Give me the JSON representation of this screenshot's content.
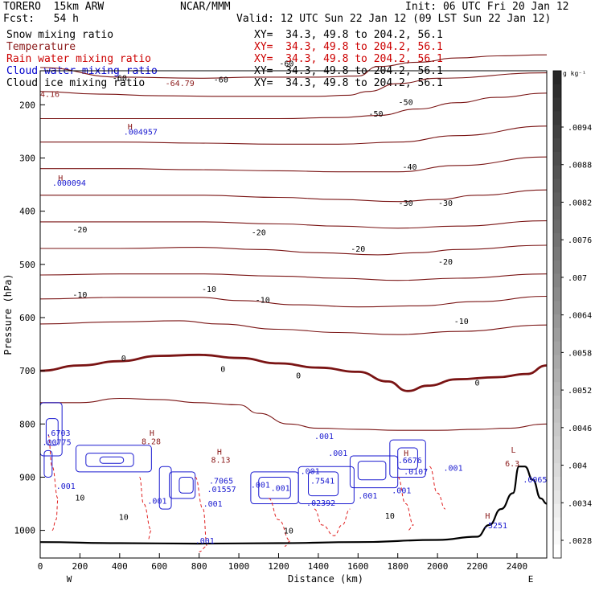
{
  "header": {
    "model": "TORERO  15km ARW",
    "center": "NCAR/MMM",
    "init": "Init: 06 UTC Fri 20 Jan 12",
    "fcst": "Fcst:   54 h",
    "valid": "Valid: 12 UTC Sun 22 Jan 12 (09 LST Sun 22 Jan 12)"
  },
  "fields": [
    {
      "label": "Snow mixing ratio",
      "xy": "XY=  34.3, 49.8 to 204.2, 56.1",
      "color": "#000000",
      "xy_color": "#000000"
    },
    {
      "label": "Temperature",
      "xy": "XY=  34.3, 49.8 to 204.2, 56.1",
      "color": "#8b1a1a",
      "xy_color": "#cc0000"
    },
    {
      "label": "Rain water mixing ratio",
      "xy": "XY=  34.3, 49.8 to 204.2, 56.1",
      "color": "#cc0000",
      "xy_color": "#cc0000"
    },
    {
      "label": "Cloud water mixing ratio",
      "xy": "XY=  34.3, 49.8 to 204.2, 56.1",
      "color": "#0000cc",
      "xy_color": "#000000"
    },
    {
      "label": "Cloud ice mixing ratio",
      "xy": "XY=  34.3, 49.8 to 204.2, 56.1",
      "color": "#000000",
      "xy_color": "#000000"
    }
  ],
  "chart_data": {
    "type": "line",
    "title": "",
    "xlabel": "Distance (km)",
    "ylabel": "Pressure (hPa)",
    "xlim": [
      0,
      2550
    ],
    "ylim": [
      1050,
      140
    ],
    "x_ticks": [
      "0",
      "200",
      "400",
      "600",
      "800",
      "1000",
      "1200",
      "1400",
      "1600",
      "1800",
      "2000",
      "2200",
      "2400"
    ],
    "x_tick_values": [
      0,
      200,
      400,
      600,
      800,
      1000,
      1200,
      1400,
      1600,
      1800,
      2000,
      2200,
      2400
    ],
    "x_end_labels": [
      "W",
      "E"
    ],
    "y_ticks": [
      "200",
      "300",
      "400",
      "500",
      "600",
      "700",
      "800",
      "900",
      "1000"
    ],
    "y_tick_values": [
      200,
      300,
      400,
      500,
      600,
      700,
      800,
      900,
      1000
    ],
    "temperature_isotherms": [
      {
        "label": "-60",
        "x": [
          0,
          400,
          800,
          1100,
          1400,
          1600,
          1700,
          1900,
          2100,
          2300,
          2550
        ],
        "y": [
          130,
          148,
          150,
          148,
          148,
          146,
          128,
          120,
          112,
          108,
          106
        ]
      },
      {
        "label": "-60b",
        "x": [
          0,
          300,
          600,
          900,
          1200,
          1400,
          1550,
          1650,
          1800,
          2000,
          2550
        ],
        "y": [
          175,
          180,
          183,
          184,
          184,
          184,
          182,
          175,
          160,
          150,
          140
        ]
      },
      {
        "label": "-50",
        "x": [
          0,
          400,
          800,
          1200,
          1500,
          1700,
          1900,
          2100,
          2300,
          2550
        ],
        "y": [
          226,
          226,
          226,
          226,
          224,
          220,
          208,
          196,
          186,
          178
        ]
      },
      {
        "label": "-50b",
        "x": [
          0,
          400,
          800,
          1200,
          1500,
          1800,
          2100,
          2550
        ],
        "y": [
          270,
          270,
          272,
          274,
          274,
          270,
          258,
          240
        ]
      },
      {
        "label": "-40",
        "x": [
          0,
          400,
          800,
          1200,
          1500,
          1800,
          2100,
          2550
        ],
        "y": [
          320,
          320,
          322,
          324,
          326,
          326,
          314,
          298
        ]
      },
      {
        "label": "-30",
        "x": [
          0,
          400,
          800,
          1200,
          1500,
          1800,
          2000,
          2200,
          2550
        ],
        "y": [
          370,
          370,
          370,
          374,
          378,
          382,
          378,
          370,
          360
        ]
      },
      {
        "label": "-30b",
        "x": [
          0,
          400,
          800,
          1200,
          1500,
          1800,
          2100,
          2550
        ],
        "y": [
          420,
          420,
          420,
          424,
          428,
          432,
          428,
          418
        ]
      },
      {
        "label": "-20",
        "x": [
          0,
          400,
          800,
          1100,
          1400,
          1700,
          1900,
          2100,
          2550
        ],
        "y": [
          470,
          470,
          468,
          472,
          478,
          482,
          478,
          472,
          464
        ]
      },
      {
        "label": "-20b",
        "x": [
          0,
          400,
          800,
          1200,
          1500,
          1800,
          2100,
          2550
        ],
        "y": [
          520,
          518,
          518,
          522,
          526,
          530,
          526,
          518
        ]
      },
      {
        "label": "-10",
        "x": [
          0,
          400,
          800,
          1000,
          1300,
          1600,
          1900,
          2200,
          2550
        ],
        "y": [
          565,
          562,
          562,
          568,
          576,
          580,
          578,
          570,
          560
        ]
      },
      {
        "label": "-10b",
        "x": [
          0,
          400,
          700,
          900,
          1200,
          1500,
          1800,
          2100,
          2550
        ],
        "y": [
          612,
          608,
          606,
          612,
          622,
          628,
          632,
          626,
          614
        ]
      },
      {
        "label": "0",
        "x": [
          0,
          200,
          400,
          600,
          800,
          1000,
          1200,
          1400,
          1600,
          1750,
          1850,
          1950,
          2100,
          2300,
          2450,
          2550
        ],
        "y": [
          700,
          690,
          682,
          672,
          670,
          676,
          686,
          694,
          702,
          720,
          738,
          728,
          716,
          712,
          706,
          690
        ]
      },
      {
        "label": "10",
        "x": [
          0,
          200,
          400,
          600,
          800,
          1000,
          1100,
          1250,
          1400,
          1600,
          1800,
          2000,
          2200,
          2350,
          2550
        ],
        "y": [
          760,
          760,
          752,
          754,
          760,
          764,
          780,
          800,
          808,
          810,
          812,
          812,
          810,
          808,
          800
        ]
      }
    ],
    "terrain": {
      "x": [
        0,
        400,
        800,
        1200,
        1600,
        2000,
        2200,
        2260,
        2320,
        2380,
        2410,
        2440,
        2480,
        2520,
        2550
      ],
      "y": [
        1022,
        1024,
        1025,
        1024,
        1022,
        1018,
        1012,
        990,
        960,
        930,
        880,
        880,
        905,
        940,
        950
      ]
    },
    "annotations": [
      {
        "text": "-64.79",
        "x": 630,
        "y": 165
      },
      {
        "text": "4.16",
        "x": 0,
        "y": 185
      },
      {
        "text": "H",
        "x": 440,
        "y": 246
      },
      {
        "text": ".004957",
        "x": 420,
        "y": 256
      },
      {
        "text": "H",
        "x": 90,
        "y": 343
      },
      {
        "text": ".000094",
        "x": 60,
        "y": 352
      },
      {
        "text": "H",
        "x": 550,
        "y": 822
      },
      {
        "text": "8.28",
        "x": 510,
        "y": 838
      },
      {
        "text": "H",
        "x": 890,
        "y": 858
      },
      {
        "text": "8.13",
        "x": 860,
        "y": 873
      },
      {
        "text": ".6703",
        "x": 30,
        "y": 822
      },
      {
        "text": ".00775",
        "x": 10,
        "y": 840
      },
      {
        "text": ".001",
        "x": 1310,
        "y": 894
      },
      {
        "text": ".001",
        "x": 1450,
        "y": 860
      },
      {
        "text": ".001",
        "x": 1380,
        "y": 828
      },
      {
        "text": "H",
        "x": 1830,
        "y": 860
      },
      {
        "text": ".6676",
        "x": 1800,
        "y": 874
      },
      {
        "text": ".0107",
        "x": 1830,
        "y": 895
      },
      {
        "text": ".7541",
        "x": 1360,
        "y": 912
      },
      {
        "text": ".7065",
        "x": 850,
        "y": 912
      },
      {
        "text": ".01557",
        "x": 840,
        "y": 928
      },
      {
        "text": ".001",
        "x": 820,
        "y": 955
      },
      {
        "text": ".001",
        "x": 540,
        "y": 950
      },
      {
        "text": ".001",
        "x": 80,
        "y": 922
      },
      {
        "text": ".001",
        "x": 1060,
        "y": 920
      },
      {
        "text": ".001",
        "x": 1160,
        "y": 926
      },
      {
        "text": ".001",
        "x": 1600,
        "y": 940
      },
      {
        "text": ".001",
        "x": 1770,
        "y": 930
      },
      {
        "text": ".001",
        "x": 2030,
        "y": 888
      },
      {
        "text": ".02392",
        "x": 1340,
        "y": 954
      },
      {
        "text": ".001",
        "x": 780,
        "y": 1025
      },
      {
        "text": "H",
        "x": 2240,
        "y": 978
      },
      {
        "text": ".5251",
        "x": 2230,
        "y": 996
      },
      {
        "text": "L",
        "x": 2370,
        "y": 854
      },
      {
        "text": "6.3",
        "x": 2340,
        "y": 880
      },
      {
        "text": ".0065",
        "x": 2430,
        "y": 910
      }
    ],
    "isotherm_labels": [
      {
        "text": "-60",
        "x": 400,
        "y": 155
      },
      {
        "text": "-60",
        "x": 910,
        "y": 158
      },
      {
        "text": "-60",
        "x": 1240,
        "y": 128
      },
      {
        "text": "-50",
        "x": 1690,
        "y": 222
      },
      {
        "text": "-50",
        "x": 1840,
        "y": 200
      },
      {
        "text": "-40",
        "x": 1860,
        "y": 322
      },
      {
        "text": "-30",
        "x": 1840,
        "y": 390
      },
      {
        "text": "-30",
        "x": 2040,
        "y": 390
      },
      {
        "text": "-20",
        "x": 200,
        "y": 440
      },
      {
        "text": "-20",
        "x": 1100,
        "y": 445
      },
      {
        "text": "-20",
        "x": 1600,
        "y": 476
      },
      {
        "text": "-20",
        "x": 2040,
        "y": 500
      },
      {
        "text": "-10",
        "x": 200,
        "y": 562
      },
      {
        "text": "-10",
        "x": 850,
        "y": 552
      },
      {
        "text": "-10",
        "x": 1120,
        "y": 572
      },
      {
        "text": "-10",
        "x": 2120,
        "y": 612
      },
      {
        "text": "0",
        "x": 420,
        "y": 682
      },
      {
        "text": "0",
        "x": 920,
        "y": 702
      },
      {
        "text": "0",
        "x": 1300,
        "y": 714
      },
      {
        "text": "0",
        "x": 2200,
        "y": 728
      },
      {
        "text": "10",
        "x": 200,
        "y": 944
      },
      {
        "text": "10",
        "x": 420,
        "y": 980
      },
      {
        "text": "10",
        "x": 1250,
        "y": 1006
      },
      {
        "text": "10",
        "x": 1760,
        "y": 978
      }
    ],
    "colorbar": {
      "unit": "g kg⁻¹",
      "labels": [
        ".0094",
        ".0088",
        ".0082",
        ".0076",
        ".007",
        ".0064",
        ".0058",
        ".0052",
        ".0046",
        ".004",
        ".0034",
        ".0028"
      ]
    }
  }
}
